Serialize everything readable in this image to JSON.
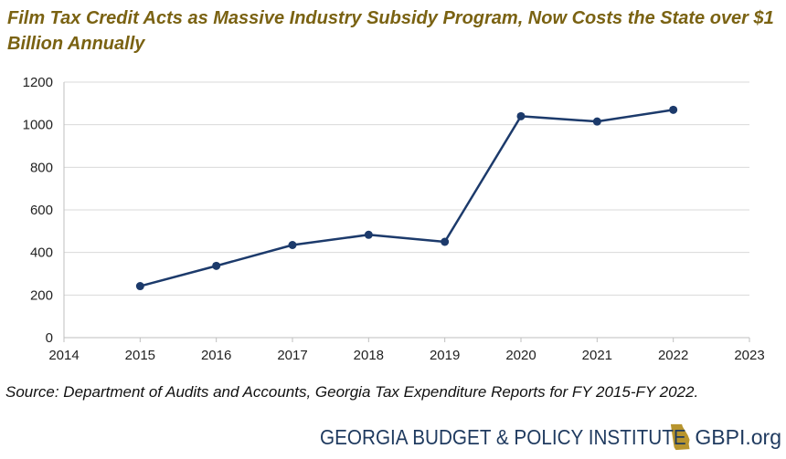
{
  "title": "Film Tax Credit Acts as Massive Industry Subsidy Program, Now Costs the State over $1 Billion Annually",
  "source": "Source: Department of Audits and Accounts, Georgia Tax Expenditure Reports for FY 2015-FY 2022.",
  "footer": {
    "org_name": "GEORGIA BUDGET & POLICY INSTITUTE",
    "url": "GBPI.org",
    "logo_icon": "georgia-state-outline-icon"
  },
  "colors": {
    "title": "#7a6212",
    "series": "#1c3a6b",
    "footer": "#1f3a5f",
    "logo": "#b8952e",
    "grid": "#d9d9d9"
  },
  "chart_data": {
    "type": "line",
    "title": "",
    "xlabel": "",
    "ylabel": "",
    "xlim": [
      2014,
      2023
    ],
    "ylim": [
      0,
      1200
    ],
    "x_ticks": [
      2014,
      2015,
      2016,
      2017,
      2018,
      2019,
      2020,
      2021,
      2022,
      2023
    ],
    "y_ticks": [
      0,
      200,
      400,
      600,
      800,
      1000,
      1200
    ],
    "grid": "horizontal",
    "legend": "none",
    "series": [
      {
        "x": [
          2015,
          2016,
          2017,
          2018,
          2019,
          2020,
          2021,
          2022
        ],
        "values": [
          242,
          337,
          435,
          483,
          450,
          1040,
          1015,
          1070
        ]
      }
    ]
  }
}
